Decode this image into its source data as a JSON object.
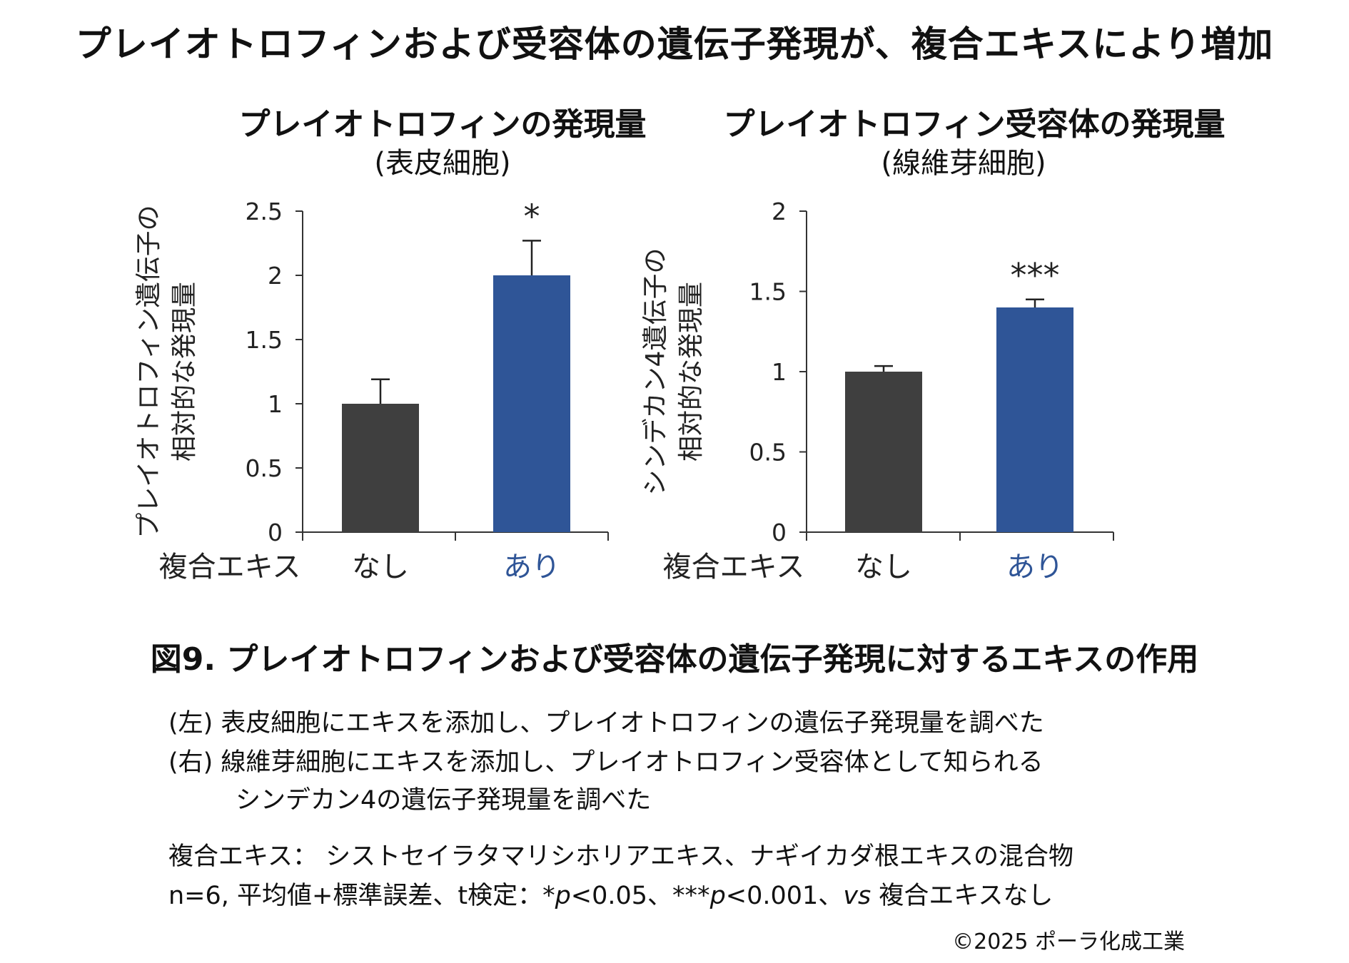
{
  "main_title": "プレイオトロフィンおよび受容体の遺伝子発現が、複合エキスにより増加",
  "chart_data": [
    {
      "type": "bar",
      "title": "プレイオトロフィンの発現量",
      "subtitle": "(表皮細胞)",
      "ylabel_lines": [
        "プレイオトロフィン遺伝子の",
        "相対的な発現量"
      ],
      "xlabel": "複合エキス",
      "categories": [
        "なし",
        "あり"
      ],
      "values": [
        1.0,
        2.0
      ],
      "errors": [
        0.19,
        0.27
      ],
      "ylim": [
        0,
        2.5
      ],
      "yticks": [
        0,
        0.5,
        1,
        1.5,
        2,
        2.5
      ],
      "ytick_labels": [
        "0",
        "0.5",
        "1",
        "1.5",
        "2",
        "2.5"
      ],
      "significance": "*",
      "bar_colors": [
        "#3f3f3f",
        "#2f5597"
      ],
      "category_label_colors": [
        "#222222",
        "#2f5597"
      ]
    },
    {
      "type": "bar",
      "title": "プレイオトロフィン受容体の発現量",
      "subtitle": "(線維芽細胞)",
      "ylabel_lines": [
        "シンデカン4遺伝子の",
        "相対的な発現量"
      ],
      "xlabel": "複合エキス",
      "categories": [
        "なし",
        "あり"
      ],
      "values": [
        1.0,
        1.4
      ],
      "errors": [
        0.035,
        0.05
      ],
      "ylim": [
        0,
        2
      ],
      "yticks": [
        0,
        0.5,
        1,
        1.5,
        2
      ],
      "ytick_labels": [
        "0",
        "0.5",
        "1",
        "1.5",
        "2"
      ],
      "significance": "***",
      "bar_colors": [
        "#3f3f3f",
        "#2f5597"
      ],
      "category_label_colors": [
        "#222222",
        "#2f5597"
      ]
    }
  ],
  "figure_caption": "図9. プレイオトロフィンおよび受容体の遺伝子発現に対するエキスの作用",
  "descriptions": {
    "left_line": "(左) 表皮細胞にエキスを添加し、プレイオトロフィンの遺伝子発現量を調べた",
    "right_line1": "(右) 線維芽細胞にエキスを添加し、プレイオトロフィン受容体として知られる",
    "right_line2": "シンデカン4の遺伝子発現量を調べた",
    "extract_note": "複合エキス：  シストセイラタマリシホリアエキス、ナギイカダ根エキスの混合物",
    "stats_prefix": "n=6, 平均値+標準誤差、t検定：*",
    "p1": "p",
    "stats_mid": "<0.05、***",
    "p2": "p",
    "stats_mid2": "<0.001、",
    "vs": "vs",
    "stats_suffix": " 複合エキスなし"
  },
  "copyright": "©2025 ポーラ化成工業"
}
